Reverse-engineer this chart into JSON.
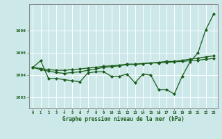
{
  "bg_color": "#cce8e8",
  "grid_color": "#ffffff",
  "line_color": "#1a5c1a",
  "xlabel": "Graphe pression niveau de la mer (hPa)",
  "xlim": [
    -0.5,
    23.5
  ],
  "ylim": [
    1002.5,
    1007.2
  ],
  "yticks": [
    1003,
    1004,
    1005,
    1006
  ],
  "series1": [
    1004.35,
    1004.65,
    1003.85,
    1003.85,
    1003.8,
    1003.75,
    1003.7,
    1004.1,
    1004.15,
    1004.15,
    1003.95,
    1003.95,
    1004.05,
    1003.65,
    1004.05,
    1004.0,
    1003.35,
    1003.35,
    1003.15,
    1003.95,
    1004.6,
    1005.0,
    1006.05,
    1006.75
  ],
  "series2": [
    1004.35,
    1004.3,
    1004.25,
    1004.22,
    1004.22,
    1004.25,
    1004.28,
    1004.32,
    1004.35,
    1004.4,
    1004.42,
    1004.45,
    1004.5,
    1004.5,
    1004.52,
    1004.55,
    1004.55,
    1004.57,
    1004.6,
    1004.62,
    1004.65,
    1004.67,
    1004.72,
    1004.75
  ],
  "series3": [
    1004.35,
    1004.25,
    1004.18,
    1004.12,
    1004.08,
    1004.12,
    1004.15,
    1004.22,
    1004.28,
    1004.35,
    1004.38,
    1004.42,
    1004.48,
    1004.48,
    1004.52,
    1004.55,
    1004.58,
    1004.62,
    1004.62,
    1004.67,
    1004.72,
    1004.77,
    1004.82,
    1004.87
  ]
}
